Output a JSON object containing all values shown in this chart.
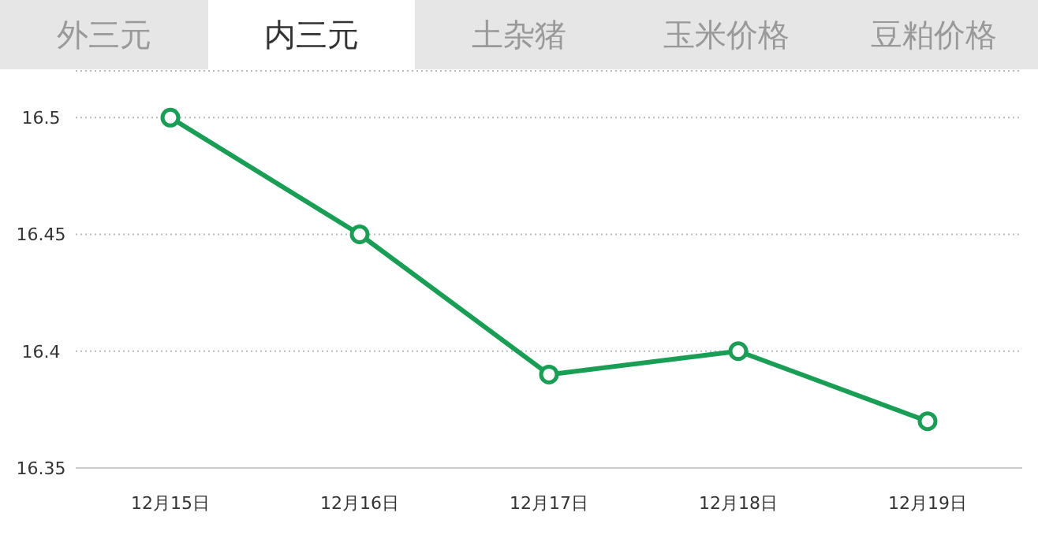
{
  "chart_data": {
    "type": "line",
    "title": "内三元",
    "annotations": [
      "外三元",
      "土杂猪",
      "玉米价格",
      "豆粕价格"
    ],
    "categories": [
      "12月15日",
      "12月16日",
      "12月17日",
      "12月18日",
      "12月19日"
    ],
    "series": [
      {
        "color": "#1a9e55",
        "values": [
          16.5,
          16.45,
          16.39,
          16.4,
          16.37
        ]
      }
    ],
    "ylim": [
      16.35,
      16.52
    ],
    "yticks": [
      16.35,
      16.4,
      16.45,
      16.5
    ],
    "grid": "y",
    "marker": "circle",
    "line_style": "solid",
    "legend": false
  }
}
